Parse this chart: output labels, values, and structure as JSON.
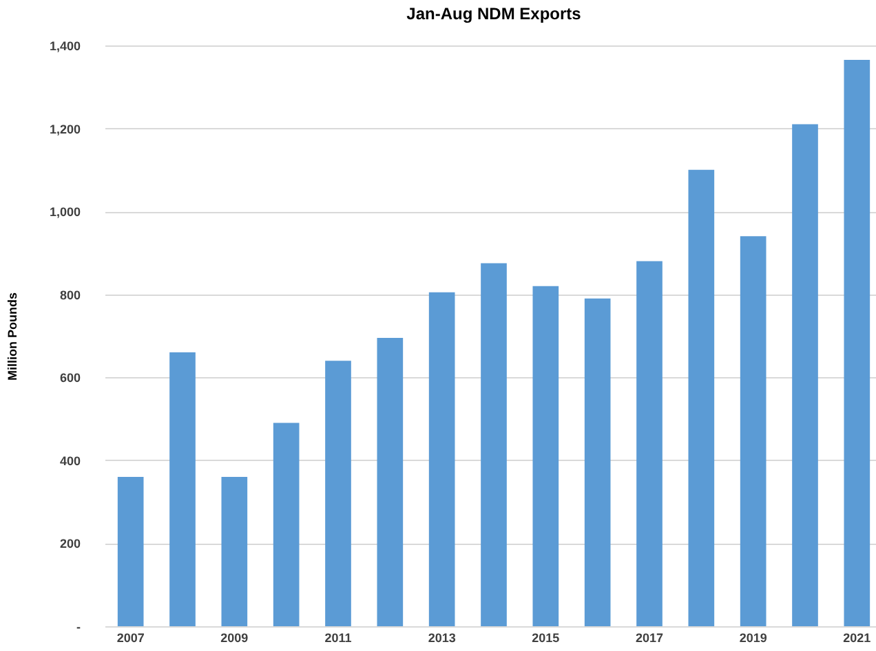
{
  "chart_data": {
    "type": "bar",
    "title": "Jan-Aug NDM Exports",
    "ylabel": "Million Pounds",
    "categories": [
      "2007",
      null,
      "2009",
      null,
      "2011",
      null,
      "2013",
      null,
      "2015",
      null,
      "2017",
      null,
      "2019",
      null,
      "2021"
    ],
    "values": [
      360,
      660,
      360,
      490,
      640,
      695,
      805,
      875,
      820,
      790,
      880,
      1100,
      940,
      1210,
      1365
    ],
    "color": "#5b9bd5",
    "ylim": [
      0,
      1400
    ],
    "yticks": [
      {
        "value": 0,
        "label": "-"
      },
      200,
      400,
      600,
      800,
      {
        "value": 1000,
        "label": "1,000"
      },
      {
        "value": 1200,
        "label": "1,200"
      },
      {
        "value": 1400,
        "label": "1,400"
      }
    ],
    "grid": "y"
  }
}
